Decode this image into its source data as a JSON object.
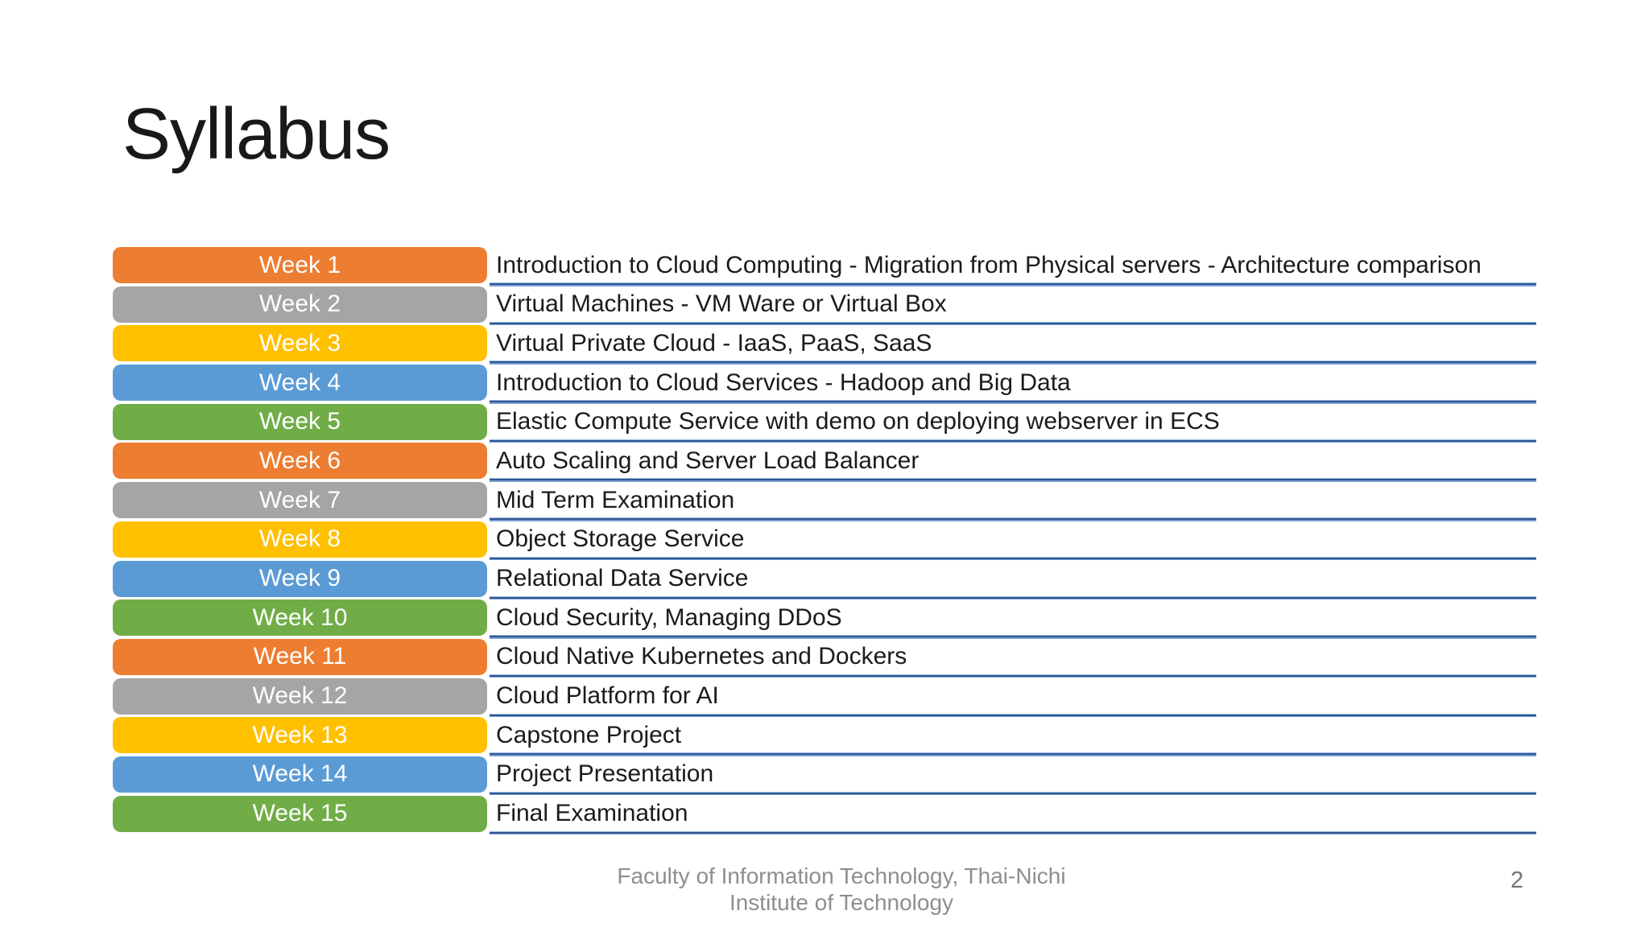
{
  "slide": {
    "title": "Syllabus",
    "footer": "Faculty of Information Technology, Thai-Nichi Institute of Technology",
    "page_number": "2"
  },
  "colors": {
    "accent_orange": "#ED7D31",
    "accent_gray": "#A5A5A5",
    "accent_yellow": "#FFC000",
    "accent_blue": "#5B9BD5",
    "accent_green": "#70AD47",
    "underline_dark_blue": "#2F5795",
    "underline_light_blue": "#9DB9DD",
    "week_text": "#FFFFFF",
    "topic_text": "#1B1B1B",
    "footer_text": "#8E8E8E"
  },
  "table": {
    "rows": [
      {
        "week": "Week 1",
        "topic": "Introduction to Cloud Computing - Migration from Physical servers - Architecture comparison",
        "color": "#ED7D31"
      },
      {
        "week": "Week 2",
        "topic": "Virtual Machines - VM Ware or Virtual Box",
        "color": "#A5A5A5"
      },
      {
        "week": "Week 3",
        "topic": "Virtual Private Cloud - IaaS, PaaS, SaaS",
        "color": "#FFC000"
      },
      {
        "week": "Week 4",
        "topic": "Introduction to Cloud Services - Hadoop and Big Data",
        "color": "#5B9BD5"
      },
      {
        "week": "Week 5",
        "topic": "Elastic Compute Service with demo on deploying webserver in ECS",
        "color": "#70AD47"
      },
      {
        "week": "Week 6",
        "topic": "Auto Scaling and Server Load Balancer",
        "color": "#ED7D31"
      },
      {
        "week": "Week 7",
        "topic": "Mid Term Examination",
        "color": "#A5A5A5"
      },
      {
        "week": "Week 8",
        "topic": "Object Storage Service",
        "color": "#FFC000"
      },
      {
        "week": "Week 9",
        "topic": "Relational Data Service",
        "color": "#5B9BD5"
      },
      {
        "week": "Week 10",
        "topic": "Cloud Security, Managing DDoS",
        "color": "#70AD47"
      },
      {
        "week": "Week 11",
        "topic": "Cloud Native Kubernetes and Dockers",
        "color": "#ED7D31"
      },
      {
        "week": "Week 12",
        "topic": "Cloud Platform for AI",
        "color": "#A5A5A5"
      },
      {
        "week": "Week 13",
        "topic": "Capstone Project",
        "color": "#FFC000"
      },
      {
        "week": "Week 14",
        "topic": "Project Presentation",
        "color": "#5B9BD5"
      },
      {
        "week": "Week 15",
        "topic": "Final Examination",
        "color": "#70AD47"
      }
    ]
  }
}
